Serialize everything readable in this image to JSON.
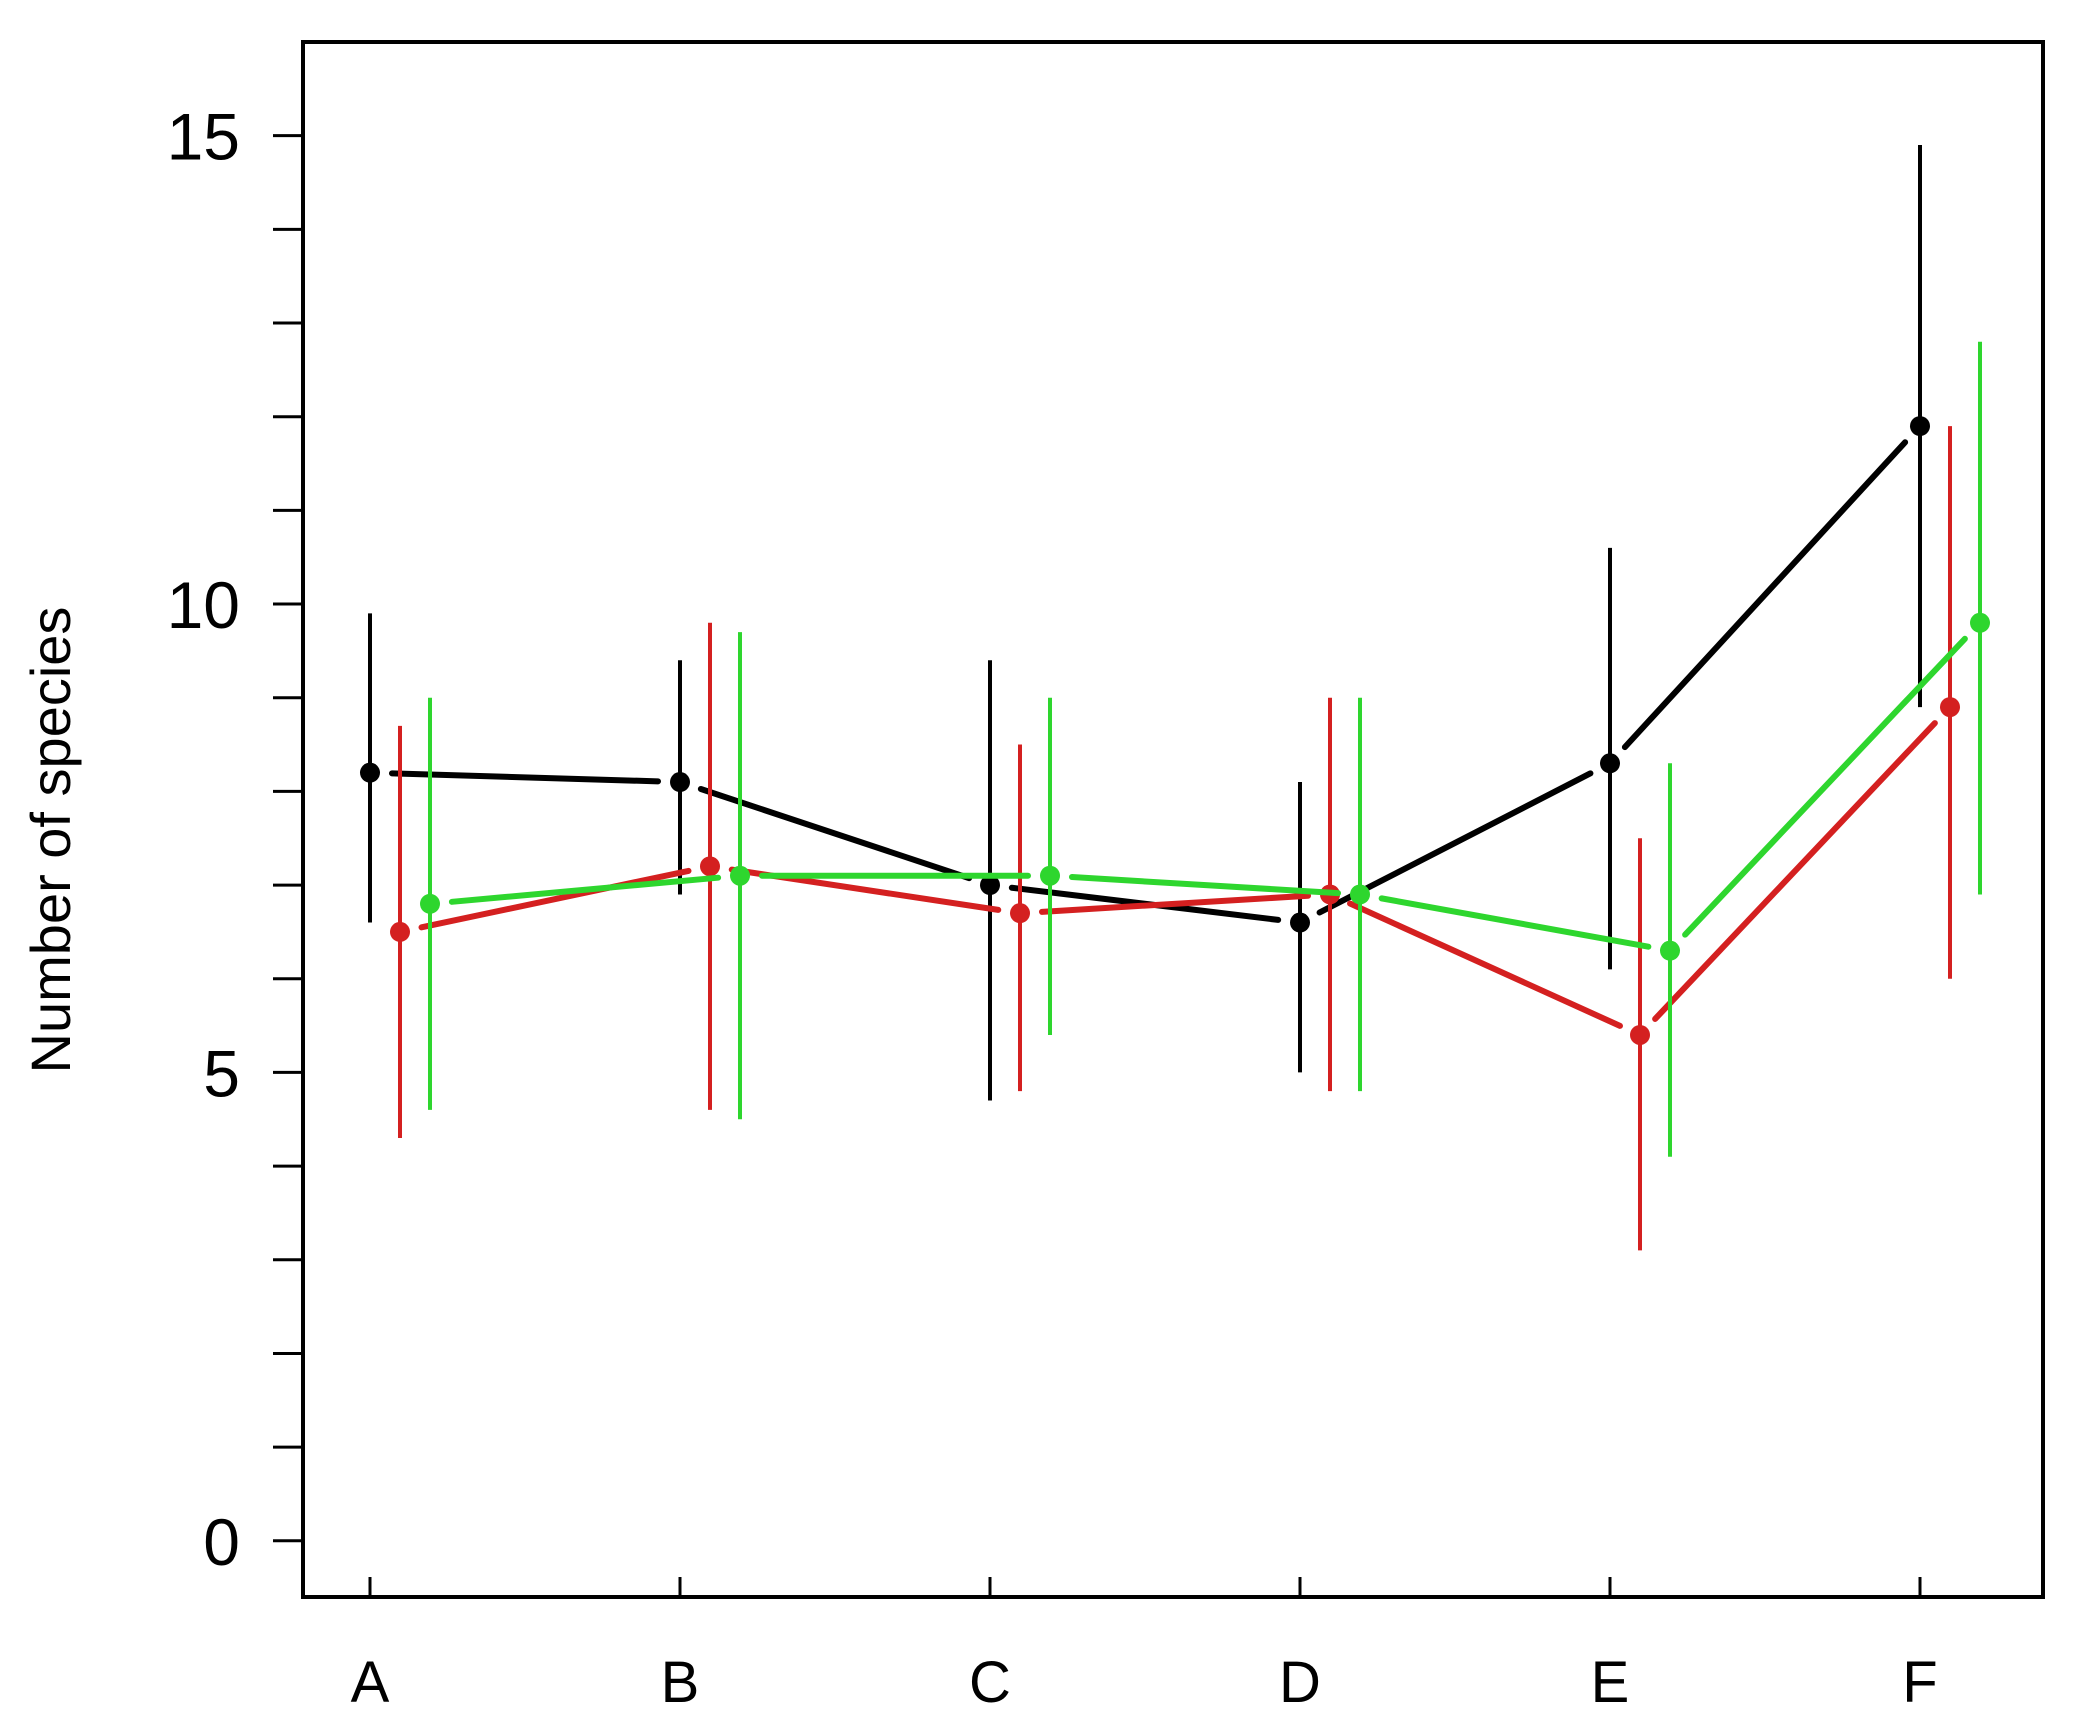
{
  "chart_data": {
    "type": "line",
    "title": "",
    "xlabel": "",
    "ylabel": "Number of species",
    "categories": [
      "A",
      "B",
      "C",
      "D",
      "E",
      "F"
    ],
    "ylim": [
      -0.6,
      16
    ],
    "yticks_major": [
      0,
      5,
      10,
      15
    ],
    "yticks_minor_step": 1,
    "grid": false,
    "error_bars": true,
    "series": [
      {
        "color": "#000000",
        "values": [
          8.2,
          8.1,
          7.0,
          6.6,
          8.3,
          11.9
        ],
        "err_low": [
          6.6,
          6.9,
          4.7,
          5.0,
          6.1,
          8.9
        ],
        "err_high": [
          9.9,
          9.4,
          9.4,
          8.1,
          10.6,
          14.9
        ]
      },
      {
        "color": "#d42020",
        "values": [
          6.5,
          7.2,
          6.7,
          6.9,
          5.4,
          8.9
        ],
        "err_low": [
          4.3,
          4.6,
          4.8,
          4.8,
          3.1,
          6.0
        ],
        "err_high": [
          8.7,
          9.8,
          8.5,
          9.0,
          7.5,
          11.9
        ]
      },
      {
        "color": "#2ed62e",
        "values": [
          6.8,
          7.1,
          7.1,
          6.9,
          6.3,
          9.8
        ],
        "err_low": [
          4.6,
          4.5,
          5.4,
          4.8,
          4.1,
          6.9
        ],
        "err_high": [
          9.0,
          9.7,
          9.0,
          9.0,
          8.3,
          12.8
        ]
      }
    ]
  }
}
